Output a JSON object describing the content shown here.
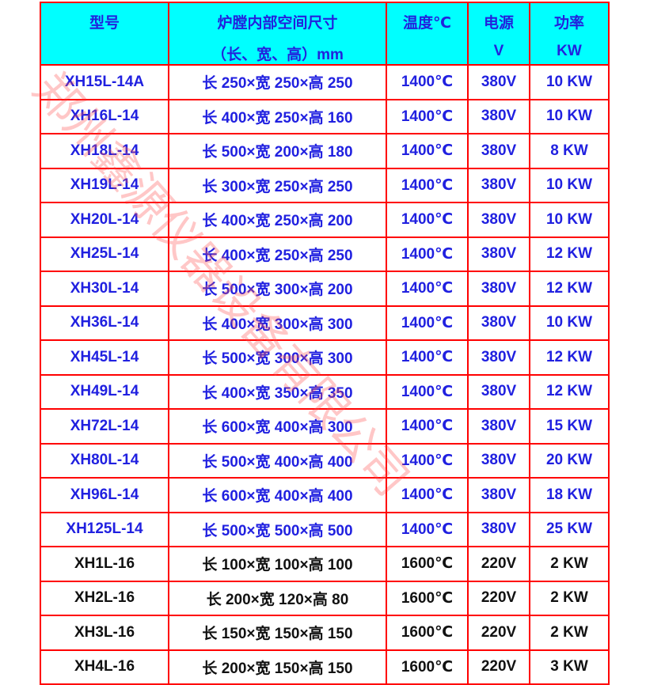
{
  "headers": [
    {
      "line1": "型号",
      "line2": ""
    },
    {
      "line1": "炉膛内部空间尺寸",
      "line2": "（长、宽、高）mm"
    },
    {
      "line1": "温度℃",
      "line2": ""
    },
    {
      "line1": "电源",
      "line2": "V"
    },
    {
      "line1": "功率",
      "line2": "KW"
    }
  ],
  "colors": {
    "header_bg": "#00ffff",
    "border": "#ff0000",
    "text_blue": "#2020e0",
    "text_black": "#111111"
  },
  "watermark": "郑州鑫源仪器设备有限公司",
  "rows": [
    {
      "model": "XH15L-14A",
      "size": "长 250×宽 250×高 250",
      "temp": "1400℃",
      "voltage": "380V",
      "power": "10 KW",
      "color": "blue"
    },
    {
      "model": "XH16L-14",
      "size": "长 400×宽 250×高 160",
      "temp": "1400℃",
      "voltage": "380V",
      "power": "10 KW",
      "color": "blue"
    },
    {
      "model": "XH18L-14",
      "size": "长 500×宽 200×高 180",
      "temp": "1400℃",
      "voltage": "380V",
      "power": "8 KW",
      "color": "blue"
    },
    {
      "model": "XH19L-14",
      "size": "长 300×宽 250×高 250",
      "temp": "1400℃",
      "voltage": "380V",
      "power": "10 KW",
      "color": "blue"
    },
    {
      "model": "XH20L-14",
      "size": "长 400×宽 250×高 200",
      "temp": "1400℃",
      "voltage": "380V",
      "power": "10 KW",
      "color": "blue"
    },
    {
      "model": "XH25L-14",
      "size": "长 400×宽 250×高 250",
      "temp": "1400℃",
      "voltage": "380V",
      "power": "12 KW",
      "color": "blue"
    },
    {
      "model": "XH30L-14",
      "size": "长 500×宽 300×高 200",
      "temp": "1400℃",
      "voltage": "380V",
      "power": "12 KW",
      "color": "blue"
    },
    {
      "model": "XH36L-14",
      "size": "长 400×宽 300×高 300",
      "temp": "1400℃",
      "voltage": "380V",
      "power": "10 KW",
      "color": "blue"
    },
    {
      "model": "XH45L-14",
      "size": "长 500×宽 300×高 300",
      "temp": "1400℃",
      "voltage": "380V",
      "power": "12 KW",
      "color": "blue"
    },
    {
      "model": "XH49L-14",
      "size": "长 400×宽 350×高 350",
      "temp": "1400℃",
      "voltage": "380V",
      "power": "12 KW",
      "color": "blue"
    },
    {
      "model": "XH72L-14",
      "size": "长 600×宽 400×高 300",
      "temp": "1400℃",
      "voltage": "380V",
      "power": "15 KW",
      "color": "blue"
    },
    {
      "model": "XH80L-14",
      "size": "长 500×宽 400×高 400",
      "temp": "1400℃",
      "voltage": "380V",
      "power": "20 KW",
      "color": "blue"
    },
    {
      "model": "XH96L-14",
      "size": "长 600×宽 400×高 400",
      "temp": "1400℃",
      "voltage": "380V",
      "power": "18 KW",
      "color": "blue"
    },
    {
      "model": "XH125L-14",
      "size": "长 500×宽 500×高 500",
      "temp": "1400℃",
      "voltage": "380V",
      "power": "25 KW",
      "color": "blue"
    },
    {
      "model": "XH1L-16",
      "size": "长 100×宽 100×高 100",
      "temp": "1600℃",
      "voltage": "220V",
      "power": "2 KW",
      "color": "black"
    },
    {
      "model": "XH2L-16",
      "size": "长 200×宽 120×高 80",
      "temp": "1600℃",
      "voltage": "220V",
      "power": "2 KW",
      "color": "black"
    },
    {
      "model": "XH3L-16",
      "size": "长 150×宽 150×高 150",
      "temp": "1600℃",
      "voltage": "220V",
      "power": "2 KW",
      "color": "black"
    },
    {
      "model": "XH4L-16",
      "size": "长 200×宽 150×高 150",
      "temp": "1600℃",
      "voltage": "220V",
      "power": "3 KW",
      "color": "black"
    }
  ]
}
